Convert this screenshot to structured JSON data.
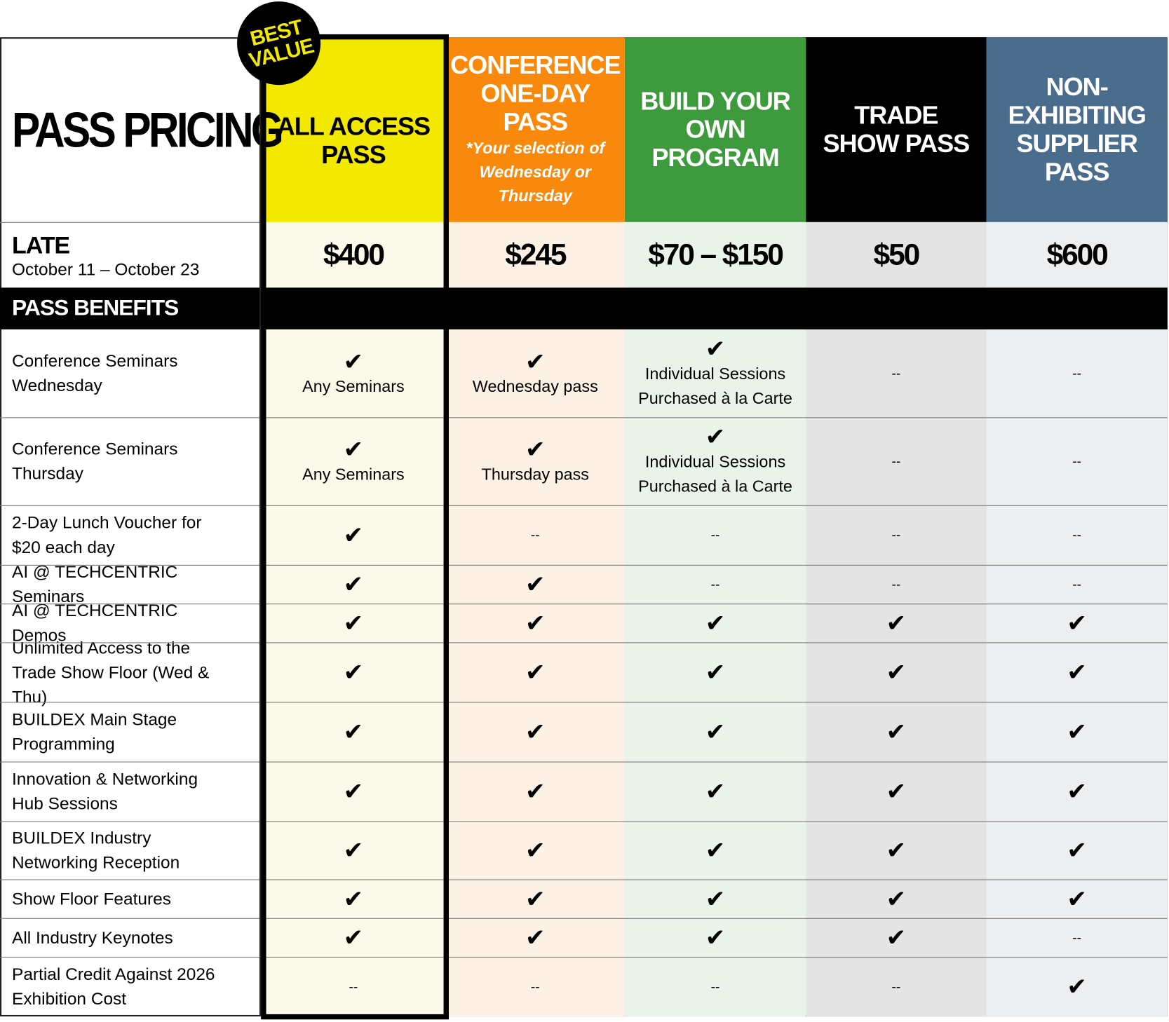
{
  "title": "PASS PRICING",
  "badge": [
    "BEST",
    "VALUE"
  ],
  "price_label": {
    "title": "LATE",
    "dates": "October 11 – October 23"
  },
  "section": "PASS BENEFITS",
  "columns": [
    {
      "name": "ALL ACCESS PASS",
      "price": "$400"
    },
    {
      "name": "CONFERENCE ONE-DAY PASS",
      "note": "*Your selection of Wednesday or Thursday",
      "price": "$245"
    },
    {
      "name": "BUILD YOUR OWN PROGRAM",
      "price": "$70 – $150"
    },
    {
      "name": "TRADE SHOW PASS",
      "price": "$50"
    },
    {
      "name": "NON-EXHIBITING SUPPLIER PASS",
      "price": "$600"
    }
  ],
  "rows": [
    {
      "label": "Conference Seminars Wednesday",
      "cells": [
        [
          "✔",
          "Any Seminars"
        ],
        [
          "✔",
          "Wednesday pass"
        ],
        [
          "✔",
          "Individual Sessions Purchased à la Carte"
        ],
        [
          "--"
        ],
        [
          "--"
        ]
      ]
    },
    {
      "label": "Conference Seminars Thursday",
      "cells": [
        [
          "✔",
          "Any Seminars"
        ],
        [
          "✔",
          "Thursday pass"
        ],
        [
          "✔",
          "Individual Sessions Purchased à la Carte"
        ],
        [
          "--"
        ],
        [
          "--"
        ]
      ]
    },
    {
      "label": "2-Day Lunch Voucher for $20 each day",
      "cells": [
        [
          "✔"
        ],
        [
          "--"
        ],
        [
          "--"
        ],
        [
          "--"
        ],
        [
          "--"
        ]
      ]
    },
    {
      "label": "AI @ TECHCENTRIC Seminars",
      "cells": [
        [
          "✔"
        ],
        [
          "✔"
        ],
        [
          "--"
        ],
        [
          "--"
        ],
        [
          "--"
        ]
      ]
    },
    {
      "label": "AI @ TECHCENTRIC Demos",
      "cells": [
        [
          "✔"
        ],
        [
          "✔"
        ],
        [
          "✔"
        ],
        [
          "✔"
        ],
        [
          "✔"
        ]
      ]
    },
    {
      "label": "Unlimited Access to the Trade Show Floor (Wed & Thu)",
      "cells": [
        [
          "✔"
        ],
        [
          "✔"
        ],
        [
          "✔"
        ],
        [
          "✔"
        ],
        [
          "✔"
        ]
      ]
    },
    {
      "label": "BUILDEX Main Stage Programming",
      "cells": [
        [
          "✔"
        ],
        [
          "✔"
        ],
        [
          "✔"
        ],
        [
          "✔"
        ],
        [
          "✔"
        ]
      ]
    },
    {
      "label": "Innovation & Networking Hub Sessions",
      "cells": [
        [
          "✔"
        ],
        [
          "✔"
        ],
        [
          "✔"
        ],
        [
          "✔"
        ],
        [
          "✔"
        ]
      ]
    },
    {
      "label": "BUILDEX Industry Networking Reception",
      "cells": [
        [
          "✔"
        ],
        [
          "✔"
        ],
        [
          "✔"
        ],
        [
          "✔"
        ],
        [
          "✔"
        ]
      ]
    },
    {
      "label": "Show Floor Features",
      "cells": [
        [
          "✔"
        ],
        [
          "✔"
        ],
        [
          "✔"
        ],
        [
          "✔"
        ],
        [
          "✔"
        ]
      ]
    },
    {
      "label": "All Industry Keynotes",
      "cells": [
        [
          "✔"
        ],
        [
          "✔"
        ],
        [
          "✔"
        ],
        [
          "✔"
        ],
        [
          "--"
        ]
      ]
    },
    {
      "label": "Partial Credit Against 2026 Exhibition Cost",
      "cells": [
        [
          "--"
        ],
        [
          "--"
        ],
        [
          "--"
        ],
        [
          "--"
        ],
        [
          "✔"
        ]
      ]
    }
  ]
}
